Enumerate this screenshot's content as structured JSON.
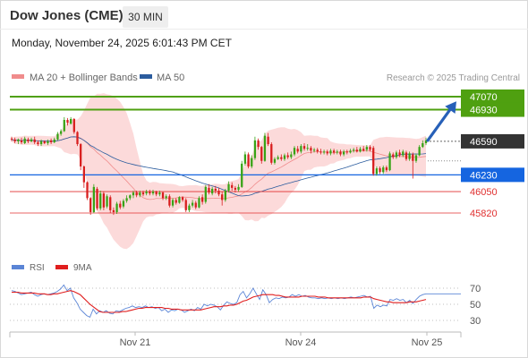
{
  "header": {
    "title": "Dow Jones (CME)",
    "timeframe": "30 MIN"
  },
  "timestamp": "Monday, November 24, 2025 6:01:43 PM CET",
  "legend": {
    "items": [
      {
        "label": "MA 20 + Bollinger Bands",
        "color": "#f08c8c"
      },
      {
        "label": "MA 50",
        "color": "#2b5c9e"
      }
    ],
    "credit": "Research © 2025 Trading Central"
  },
  "rsi_legend": {
    "items": [
      {
        "label": "RSI",
        "color": "#5b85d6"
      },
      {
        "label": "9MA",
        "color": "#e01e1e"
      }
    ]
  },
  "chart_data": [
    {
      "type": "candlestick",
      "x_ticks": [
        "Nov 21",
        "Nov 24",
        "Nov 25"
      ],
      "levels": [
        {
          "value": 47070,
          "label": "47070",
          "style": "resistance",
          "color": "#4fa010"
        },
        {
          "value": 46930,
          "label": "46930",
          "style": "resistance",
          "color": "#4fa010"
        },
        {
          "value": 46590,
          "label": "46590",
          "style": "last-price",
          "color": "#333333"
        },
        {
          "value": 46230,
          "label": "46230",
          "style": "pivot",
          "color": "#1565e0"
        },
        {
          "value": 46050,
          "label": "46050",
          "style": "support",
          "color": "#e03030"
        },
        {
          "value": 45820,
          "label": "45820",
          "style": "support",
          "color": "#e03030"
        }
      ],
      "indicators": [
        "MA 20 + Bollinger Bands",
        "MA 50"
      ],
      "candles": [
        [
          46620,
          46610,
          46640,
          46590
        ],
        [
          46610,
          46590,
          46630,
          46570
        ],
        [
          46590,
          46610,
          46620,
          46560
        ],
        [
          46600,
          46580,
          46630,
          46560
        ],
        [
          46570,
          46620,
          46640,
          46560
        ],
        [
          46610,
          46590,
          46630,
          46570
        ],
        [
          46590,
          46610,
          46630,
          46580
        ],
        [
          46610,
          46580,
          46640,
          46560
        ],
        [
          46580,
          46560,
          46600,
          46540
        ],
        [
          46560,
          46590,
          46610,
          46540
        ],
        [
          46590,
          46570,
          46600,
          46560
        ],
        [
          46570,
          46590,
          46610,
          46550
        ],
        [
          46600,
          46580,
          46620,
          46560
        ],
        [
          46580,
          46610,
          46630,
          46570
        ],
        [
          46610,
          46670,
          46690,
          46600
        ],
        [
          46670,
          46700,
          46720,
          46650
        ],
        [
          46700,
          46820,
          46850,
          46690
        ],
        [
          46820,
          46790,
          46840,
          46760
        ],
        [
          46780,
          46830,
          46850,
          46770
        ],
        [
          46830,
          46690,
          46840,
          46670
        ],
        [
          46690,
          46560,
          46700,
          46540
        ],
        [
          46560,
          46320,
          46570,
          46280
        ],
        [
          46320,
          46150,
          46330,
          46090
        ],
        [
          46150,
          45980,
          46160,
          45960
        ],
        [
          45980,
          45830,
          45990,
          45800
        ],
        [
          45830,
          46100,
          46130,
          45820
        ],
        [
          46080,
          45870,
          46100,
          45850
        ],
        [
          45870,
          46030,
          46060,
          45850
        ],
        [
          46030,
          45880,
          46050,
          45850
        ],
        [
          45890,
          46000,
          46020,
          45870
        ],
        [
          45990,
          45850,
          46010,
          45820
        ],
        [
          45850,
          45830,
          45880,
          45800
        ],
        [
          45830,
          45920,
          45940,
          45810
        ],
        [
          45920,
          45880,
          45950,
          45860
        ],
        [
          45890,
          45950,
          45970,
          45870
        ],
        [
          45950,
          45980,
          46010,
          45930
        ],
        [
          45980,
          46010,
          46020,
          45960
        ],
        [
          46010,
          46040,
          46060,
          45980
        ],
        [
          46040,
          46010,
          46060,
          45990
        ],
        [
          46010,
          46040,
          46060,
          45990
        ],
        [
          46040,
          46020,
          46060,
          46000
        ],
        [
          46030,
          46050,
          46070,
          46010
        ],
        [
          46050,
          46030,
          46070,
          46010
        ],
        [
          46030,
          46050,
          46070,
          46010
        ],
        [
          46050,
          46020,
          46060,
          46000
        ],
        [
          46020,
          46040,
          46060,
          46000
        ],
        [
          46040,
          45980,
          46050,
          45960
        ],
        [
          45980,
          46000,
          46020,
          45960
        ],
        [
          46000,
          45900,
          46020,
          45880
        ],
        [
          45900,
          45960,
          45980,
          45880
        ],
        [
          45960,
          45930,
          45980,
          45910
        ],
        [
          45930,
          45990,
          46000,
          45920
        ],
        [
          45990,
          45960,
          46000,
          45940
        ],
        [
          45960,
          45850,
          45980,
          45830
        ],
        [
          45850,
          45900,
          45920,
          45830
        ],
        [
          45900,
          45930,
          45960,
          45880
        ],
        [
          45930,
          45880,
          45950,
          45860
        ],
        [
          45880,
          45980,
          46000,
          45870
        ],
        [
          45990,
          45940,
          46020,
          45910
        ],
        [
          45940,
          46100,
          46120,
          45920
        ],
        [
          46090,
          46040,
          46130,
          46020
        ],
        [
          46030,
          46080,
          46100,
          46010
        ],
        [
          46080,
          46060,
          46110,
          46030
        ],
        [
          46060,
          46020,
          46090,
          46000
        ],
        [
          46020,
          45960,
          46050,
          45900
        ],
        [
          45960,
          46060,
          46080,
          45940
        ],
        [
          46060,
          46130,
          46160,
          46040
        ],
        [
          46120,
          46090,
          46150,
          46060
        ],
        [
          46090,
          46070,
          46110,
          46040
        ],
        [
          46070,
          46100,
          46130,
          46050
        ],
        [
          46100,
          46350,
          46380,
          46090
        ],
        [
          46350,
          46450,
          46480,
          46330
        ],
        [
          46450,
          46320,
          46470,
          46300
        ],
        [
          46320,
          46410,
          46440,
          46300
        ],
        [
          46410,
          46600,
          46640,
          46390
        ],
        [
          46600,
          46530,
          46620,
          46500
        ],
        [
          46530,
          46380,
          46540,
          46350
        ],
        [
          46380,
          46650,
          46680,
          46370
        ],
        [
          46640,
          46560,
          46680,
          46540
        ],
        [
          46560,
          46360,
          46580,
          46340
        ],
        [
          46360,
          46400,
          46420,
          46340
        ],
        [
          46400,
          46420,
          46440,
          46390
        ],
        [
          46420,
          46400,
          46450,
          46380
        ],
        [
          46400,
          46440,
          46460,
          46380
        ],
        [
          46440,
          46420,
          46470,
          46400
        ],
        [
          46420,
          46450,
          46480,
          46400
        ],
        [
          46450,
          46520,
          46540,
          46430
        ],
        [
          46510,
          46480,
          46540,
          46460
        ],
        [
          46480,
          46540,
          46560,
          46460
        ],
        [
          46540,
          46510,
          46570,
          46490
        ],
        [
          46510,
          46520,
          46560,
          46490
        ],
        [
          46520,
          46490,
          46540,
          46460
        ],
        [
          46490,
          46500,
          46520,
          46470
        ],
        [
          46500,
          46480,
          46520,
          46460
        ],
        [
          46480,
          46470,
          46510,
          46450
        ],
        [
          46470,
          46480,
          46500,
          46450
        ],
        [
          46480,
          46460,
          46500,
          46440
        ],
        [
          46460,
          46490,
          46510,
          46440
        ],
        [
          46490,
          46470,
          46510,
          46450
        ],
        [
          46470,
          46480,
          46500,
          46450
        ],
        [
          46480,
          46450,
          46500,
          46430
        ],
        [
          46450,
          46480,
          46500,
          46430
        ],
        [
          46480,
          46470,
          46500,
          46450
        ],
        [
          46470,
          46490,
          46510,
          46460
        ],
        [
          46490,
          46500,
          46520,
          46470
        ],
        [
          46500,
          46480,
          46530,
          46470
        ],
        [
          46480,
          46510,
          46530,
          46470
        ],
        [
          46510,
          46490,
          46540,
          46480
        ],
        [
          46500,
          46530,
          46550,
          46480
        ],
        [
          46530,
          46500,
          46550,
          46480
        ],
        [
          46520,
          46240,
          46540,
          46220
        ],
        [
          46240,
          46300,
          46320,
          46220
        ],
        [
          46300,
          46260,
          46320,
          46240
        ],
        [
          46260,
          46310,
          46330,
          46240
        ],
        [
          46310,
          46280,
          46330,
          46260
        ],
        [
          46280,
          46460,
          46480,
          46270
        ],
        [
          46450,
          46420,
          46470,
          46400
        ],
        [
          46420,
          46470,
          46490,
          46400
        ],
        [
          46470,
          46440,
          46500,
          46420
        ],
        [
          46440,
          46480,
          46500,
          46420
        ],
        [
          46470,
          46400,
          46490,
          46380
        ],
        [
          46400,
          46460,
          46480,
          46380
        ],
        [
          46450,
          46380,
          46470,
          46190
        ],
        [
          46380,
          46440,
          46460,
          46360
        ],
        [
          46440,
          46530,
          46550,
          46430
        ],
        [
          46530,
          46570,
          46600,
          46520
        ],
        [
          46570,
          46600,
          46630,
          46550
        ]
      ]
    },
    {
      "type": "line",
      "name": "RSI",
      "x_ticks": [
        "Nov 21",
        "Nov 24",
        "Nov 25"
      ],
      "y_ticks": [
        70,
        50,
        30
      ],
      "series": [
        {
          "name": "RSI",
          "values": [
            67,
            66,
            64,
            62,
            63,
            64,
            65,
            62,
            60,
            62,
            63,
            62,
            63,
            64,
            66,
            69,
            74,
            67,
            70,
            58,
            52,
            44,
            40,
            36,
            34,
            44,
            38,
            42,
            40,
            42,
            39,
            38,
            42,
            41,
            43,
            45,
            46,
            48,
            46,
            47,
            46,
            48,
            46,
            47,
            45,
            46,
            42,
            44,
            40,
            43,
            42,
            44,
            43,
            40,
            42,
            44,
            42,
            46,
            44,
            50,
            48,
            50,
            49,
            47,
            43,
            49,
            53,
            51,
            50,
            52,
            62,
            66,
            58,
            63,
            70,
            63,
            56,
            68,
            62,
            52,
            56,
            58,
            57,
            59,
            58,
            59,
            62,
            60,
            62,
            60,
            61,
            59,
            58,
            58,
            57,
            58,
            57,
            58,
            57,
            58,
            57,
            58,
            57,
            58,
            59,
            58,
            59,
            60,
            61,
            59,
            60,
            45,
            49,
            47,
            49,
            48,
            56,
            55,
            57,
            55,
            56,
            52,
            55,
            51,
            56,
            60,
            62,
            63
          ]
        },
        {
          "name": "9MA",
          "values": [
            65,
            65,
            65,
            64,
            64,
            64,
            64,
            64,
            63,
            63,
            63,
            62,
            62,
            63,
            63,
            64,
            65,
            66,
            67,
            66,
            64,
            62,
            58,
            54,
            50,
            47,
            44,
            41,
            40,
            40,
            40,
            40,
            40,
            40,
            41,
            41,
            42,
            43,
            44,
            45,
            45,
            46,
            46,
            46,
            46,
            46,
            46,
            45,
            45,
            44,
            44,
            44,
            43,
            43,
            43,
            43,
            43,
            43,
            43,
            44,
            45,
            46,
            47,
            47,
            47,
            48,
            48,
            49,
            49,
            50,
            52,
            54,
            55,
            57,
            59,
            60,
            61,
            62,
            62,
            62,
            62,
            61,
            61,
            60,
            59,
            59,
            59,
            59,
            59,
            60,
            60,
            60,
            60,
            60,
            59,
            59,
            59,
            58,
            58,
            58,
            58,
            58,
            58,
            58,
            58,
            58,
            58,
            58,
            59,
            59,
            59,
            57,
            56,
            55,
            54,
            53,
            53,
            52,
            52,
            52,
            52,
            52,
            53,
            53,
            53,
            54,
            55,
            56
          ]
        }
      ]
    }
  ]
}
